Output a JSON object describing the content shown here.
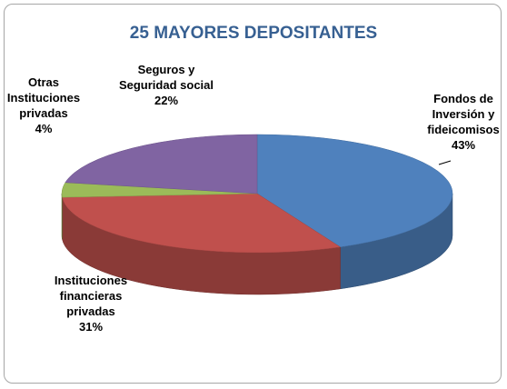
{
  "chart_data": {
    "type": "pie3d",
    "title": "25 MAYORES DEPOSITANTES",
    "categories": [
      "Fondos de Inversión y fideicomisos",
      "Instituciones financieras privadas",
      "Otras Instituciones privadas",
      "Seguros y Seguridad social"
    ],
    "values": [
      43,
      31,
      4,
      22
    ],
    "value_labels": [
      "43%",
      "31%",
      "4%",
      "22%"
    ],
    "colors": [
      "#4f81bd",
      "#c0504d",
      "#9bbb59",
      "#8064a2"
    ]
  }
}
